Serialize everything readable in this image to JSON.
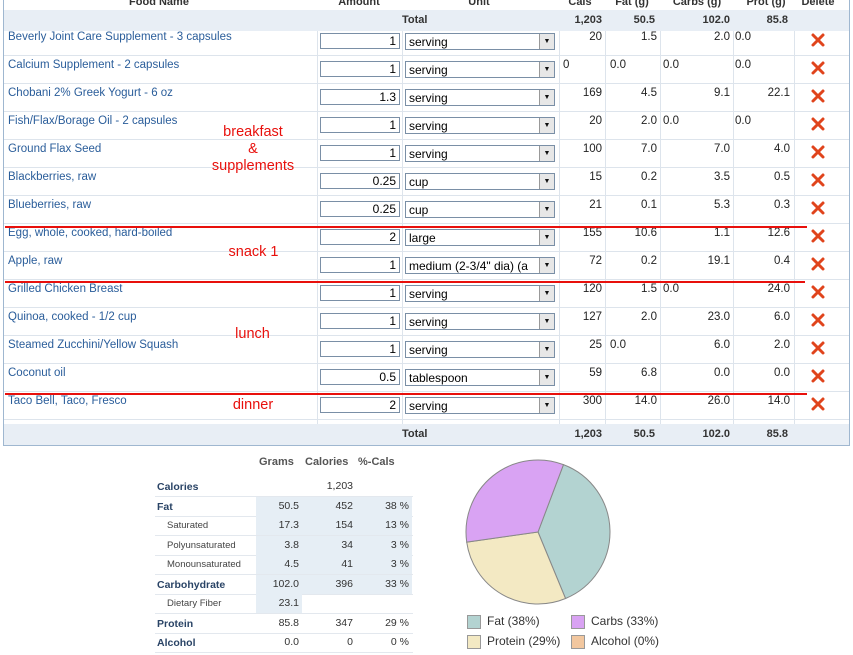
{
  "headers": {
    "food_name": "Food Name",
    "amount": "Amount",
    "unit": "Unit",
    "cals": "Cals",
    "fat": "Fat (g)",
    "carbs": "Carbs (g)",
    "prot": "Prot (g)",
    "delete": "Delete"
  },
  "total": {
    "label": "Total",
    "cals": "1,203",
    "fat": "50.5",
    "carbs": "102.0",
    "prot": "85.8"
  },
  "foods": [
    {
      "name": "Beverly Joint Care Supplement - 3 capsules",
      "amount": "1",
      "unit": "serving",
      "cals": "20",
      "fat": "1.5",
      "carbs": "2.0",
      "prot": "0.0"
    },
    {
      "name": "Calcium Supplement - 2 capsules",
      "amount": "1",
      "unit": "serving",
      "cals": "0",
      "fat": "0.0",
      "carbs": "0.0",
      "prot": "0.0"
    },
    {
      "name": "Chobani 2% Greek Yogurt - 6 oz",
      "amount": "1.3",
      "unit": "serving",
      "cals": "169",
      "fat": "4.5",
      "carbs": "9.1",
      "prot": "22.1"
    },
    {
      "name": "Fish/Flax/Borage Oil - 2 capsules",
      "amount": "1",
      "unit": "serving",
      "cals": "20",
      "fat": "2.0",
      "carbs": "0.0",
      "prot": "0.0"
    },
    {
      "name": "Ground Flax Seed",
      "amount": "1",
      "unit": "serving",
      "cals": "100",
      "fat": "7.0",
      "carbs": "7.0",
      "prot": "4.0"
    },
    {
      "name": "Blackberries, raw",
      "amount": "0.25",
      "unit": "cup",
      "cals": "15",
      "fat": "0.2",
      "carbs": "3.5",
      "prot": "0.5"
    },
    {
      "name": "Blueberries, raw",
      "amount": "0.25",
      "unit": "cup",
      "cals": "21",
      "fat": "0.1",
      "carbs": "5.3",
      "prot": "0.3"
    },
    {
      "name": "Egg, whole, cooked, hard-boiled",
      "amount": "2",
      "unit": "large",
      "cals": "155",
      "fat": "10.6",
      "carbs": "1.1",
      "prot": "12.6"
    },
    {
      "name": "Apple, raw",
      "amount": "1",
      "unit": "medium (2-3/4\" dia) (a",
      "cals": "72",
      "fat": "0.2",
      "carbs": "19.1",
      "prot": "0.4"
    },
    {
      "name": "Grilled Chicken Breast",
      "amount": "1",
      "unit": "serving",
      "cals": "120",
      "fat": "1.5",
      "carbs": "0.0",
      "prot": "24.0"
    },
    {
      "name": "Quinoa, cooked - 1/2 cup",
      "amount": "1",
      "unit": "serving",
      "cals": "127",
      "fat": "2.0",
      "carbs": "23.0",
      "prot": "6.0"
    },
    {
      "name": "Steamed Zucchini/Yellow Squash",
      "amount": "1",
      "unit": "serving",
      "cals": "25",
      "fat": "0.0",
      "carbs": "6.0",
      "prot": "2.0"
    },
    {
      "name": "Coconut oil",
      "amount": "0.5",
      "unit": "tablespoon",
      "cals": "59",
      "fat": "6.8",
      "carbs": "0.0",
      "prot": "0.0"
    },
    {
      "name": "Taco Bell, Taco, Fresco",
      "amount": "2",
      "unit": "serving",
      "cals": "300",
      "fat": "14.0",
      "carbs": "26.0",
      "prot": "14.0"
    }
  ],
  "annotations": {
    "breakfast": "breakfast\n&\nsupplements",
    "snack": "snack 1",
    "lunch": "lunch",
    "dinner": "dinner"
  },
  "nutrients": {
    "headers": {
      "grams": "Grams",
      "calories": "Calories",
      "pct": "%-Cals"
    },
    "rows": [
      {
        "label": "Calories",
        "grams": "",
        "calories": "1,203",
        "pct": ""
      },
      {
        "label": "Fat",
        "grams": "50.5",
        "calories": "452",
        "pct": "38 %"
      },
      {
        "label": "Saturated",
        "grams": "17.3",
        "calories": "154",
        "pct": "13 %"
      },
      {
        "label": "Polyunsaturated",
        "grams": "3.8",
        "calories": "34",
        "pct": "3 %"
      },
      {
        "label": "Monounsaturated",
        "grams": "4.5",
        "calories": "41",
        "pct": "3 %"
      },
      {
        "label": "Carbohydrate",
        "grams": "102.0",
        "calories": "396",
        "pct": "33 %"
      },
      {
        "label": "Dietary Fiber",
        "grams": "23.1",
        "calories": "",
        "pct": ""
      },
      {
        "label": "Protein",
        "grams": "85.8",
        "calories": "347",
        "pct": "29 %"
      },
      {
        "label": "Alcohol",
        "grams": "0.0",
        "calories": "0",
        "pct": "0 %"
      }
    ]
  },
  "chart_data": {
    "type": "pie",
    "title": "",
    "legend": [
      {
        "label": "Fat (38%)",
        "color": "#b3d3d1"
      },
      {
        "label": "Carbs (33%)",
        "color": "#d9a3f3"
      },
      {
        "label": "Protein (29%)",
        "color": "#f3e9c3"
      },
      {
        "label": "Alcohol (0%)",
        "color": "#f2c79f"
      }
    ],
    "slices": [
      {
        "name": "Fat",
        "value": 38,
        "color": "#b3d3d1"
      },
      {
        "name": "Protein",
        "value": 29,
        "color": "#f3e9c3"
      },
      {
        "name": "Carbs",
        "value": 33,
        "color": "#d9a3f3"
      },
      {
        "name": "Alcohol",
        "value": 0,
        "color": "#f2c79f"
      }
    ]
  },
  "colors": {
    "link": "#2a5d9a",
    "annotation": "#e8100c",
    "total_bg": "#e8eef5"
  }
}
